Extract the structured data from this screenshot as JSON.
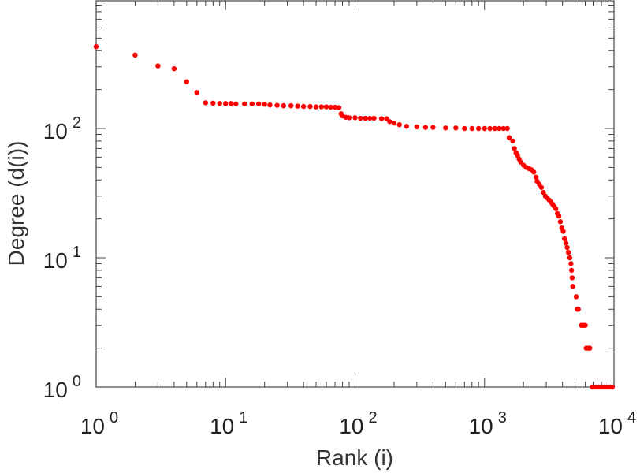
{
  "chart_data": {
    "type": "scatter",
    "xlabel": "Rank (i)",
    "ylabel": "Degree (d(i))",
    "xscale": "log",
    "yscale": "log",
    "xlim": [
      1,
      10000
    ],
    "ylim": [
      1,
      1000
    ],
    "grid": false,
    "marker_color": "#ff0000",
    "x_ticks": [
      {
        "base": "10",
        "exp": "0",
        "value": 1
      },
      {
        "base": "10",
        "exp": "1",
        "value": 10
      },
      {
        "base": "10",
        "exp": "2",
        "value": 100
      },
      {
        "base": "10",
        "exp": "3",
        "value": 1000
      },
      {
        "base": "10",
        "exp": "4",
        "value": 10000
      }
    ],
    "y_ticks": [
      {
        "base": "10",
        "exp": "0",
        "value": 1
      },
      {
        "base": "10",
        "exp": "1",
        "value": 10
      },
      {
        "base": "10",
        "exp": "2",
        "value": 100
      }
    ],
    "points": [
      [
        1,
        430
      ],
      [
        2,
        370
      ],
      [
        3,
        305
      ],
      [
        4,
        290
      ],
      [
        5,
        230
      ],
      [
        6,
        190
      ],
      [
        7,
        158
      ],
      [
        8,
        157
      ],
      [
        9,
        156
      ],
      [
        10,
        156
      ],
      [
        11,
        156
      ],
      [
        12,
        155
      ],
      [
        14,
        155
      ],
      [
        16,
        155
      ],
      [
        18,
        155
      ],
      [
        20,
        154
      ],
      [
        22,
        152
      ],
      [
        25,
        151
      ],
      [
        28,
        150
      ],
      [
        32,
        150
      ],
      [
        36,
        149
      ],
      [
        40,
        148
      ],
      [
        45,
        148
      ],
      [
        50,
        147
      ],
      [
        55,
        147
      ],
      [
        60,
        147
      ],
      [
        65,
        146
      ],
      [
        70,
        146
      ],
      [
        75,
        145
      ],
      [
        78,
        130
      ],
      [
        80,
        125
      ],
      [
        85,
        122
      ],
      [
        90,
        121
      ],
      [
        100,
        121
      ],
      [
        110,
        120
      ],
      [
        120,
        120
      ],
      [
        130,
        120
      ],
      [
        140,
        120
      ],
      [
        160,
        119
      ],
      [
        175,
        119
      ],
      [
        185,
        113
      ],
      [
        200,
        110
      ],
      [
        220,
        107
      ],
      [
        250,
        104
      ],
      [
        300,
        103
      ],
      [
        350,
        102
      ],
      [
        400,
        102
      ],
      [
        500,
        101
      ],
      [
        600,
        101
      ],
      [
        700,
        100
      ],
      [
        800,
        100
      ],
      [
        900,
        100
      ],
      [
        1000,
        100
      ],
      [
        1100,
        100
      ],
      [
        1200,
        100
      ],
      [
        1300,
        100
      ],
      [
        1400,
        100
      ],
      [
        1500,
        100
      ],
      [
        1550,
        85
      ],
      [
        1650,
        80
      ],
      [
        1700,
        70
      ],
      [
        1750,
        65
      ],
      [
        1800,
        62
      ],
      [
        1850,
        58
      ],
      [
        1900,
        55
      ],
      [
        2000,
        52
      ],
      [
        2100,
        50
      ],
      [
        2200,
        49
      ],
      [
        2300,
        48
      ],
      [
        2400,
        46
      ],
      [
        2500,
        42
      ],
      [
        2550,
        39
      ],
      [
        2650,
        37
      ],
      [
        2750,
        35
      ],
      [
        2850,
        32
      ],
      [
        2950,
        30
      ],
      [
        3050,
        29
      ],
      [
        3150,
        28
      ],
      [
        3250,
        27
      ],
      [
        3350,
        26
      ],
      [
        3450,
        25
      ],
      [
        3550,
        24
      ],
      [
        3650,
        22
      ],
      [
        3750,
        21
      ],
      [
        3850,
        19
      ],
      [
        3950,
        17
      ],
      [
        4050,
        16
      ],
      [
        4150,
        14
      ],
      [
        4250,
        13
      ],
      [
        4350,
        12
      ],
      [
        4450,
        11
      ],
      [
        4550,
        10
      ],
      [
        4650,
        9
      ],
      [
        4700,
        8
      ],
      [
        4750,
        7
      ],
      [
        4800,
        6
      ],
      [
        5100,
        5
      ],
      [
        5200,
        4
      ],
      [
        5300,
        4
      ],
      [
        5600,
        3
      ],
      [
        5800,
        3
      ],
      [
        6000,
        3
      ],
      [
        6100,
        2
      ],
      [
        6300,
        2
      ],
      [
        6500,
        2
      ],
      [
        6800,
        1
      ],
      [
        7000,
        1
      ],
      [
        7300,
        1
      ],
      [
        7600,
        1
      ],
      [
        7900,
        1
      ],
      [
        8200,
        1
      ],
      [
        8500,
        1
      ],
      [
        8800,
        1
      ],
      [
        9100,
        1
      ],
      [
        9400,
        1
      ],
      [
        9700,
        1
      ]
    ]
  }
}
